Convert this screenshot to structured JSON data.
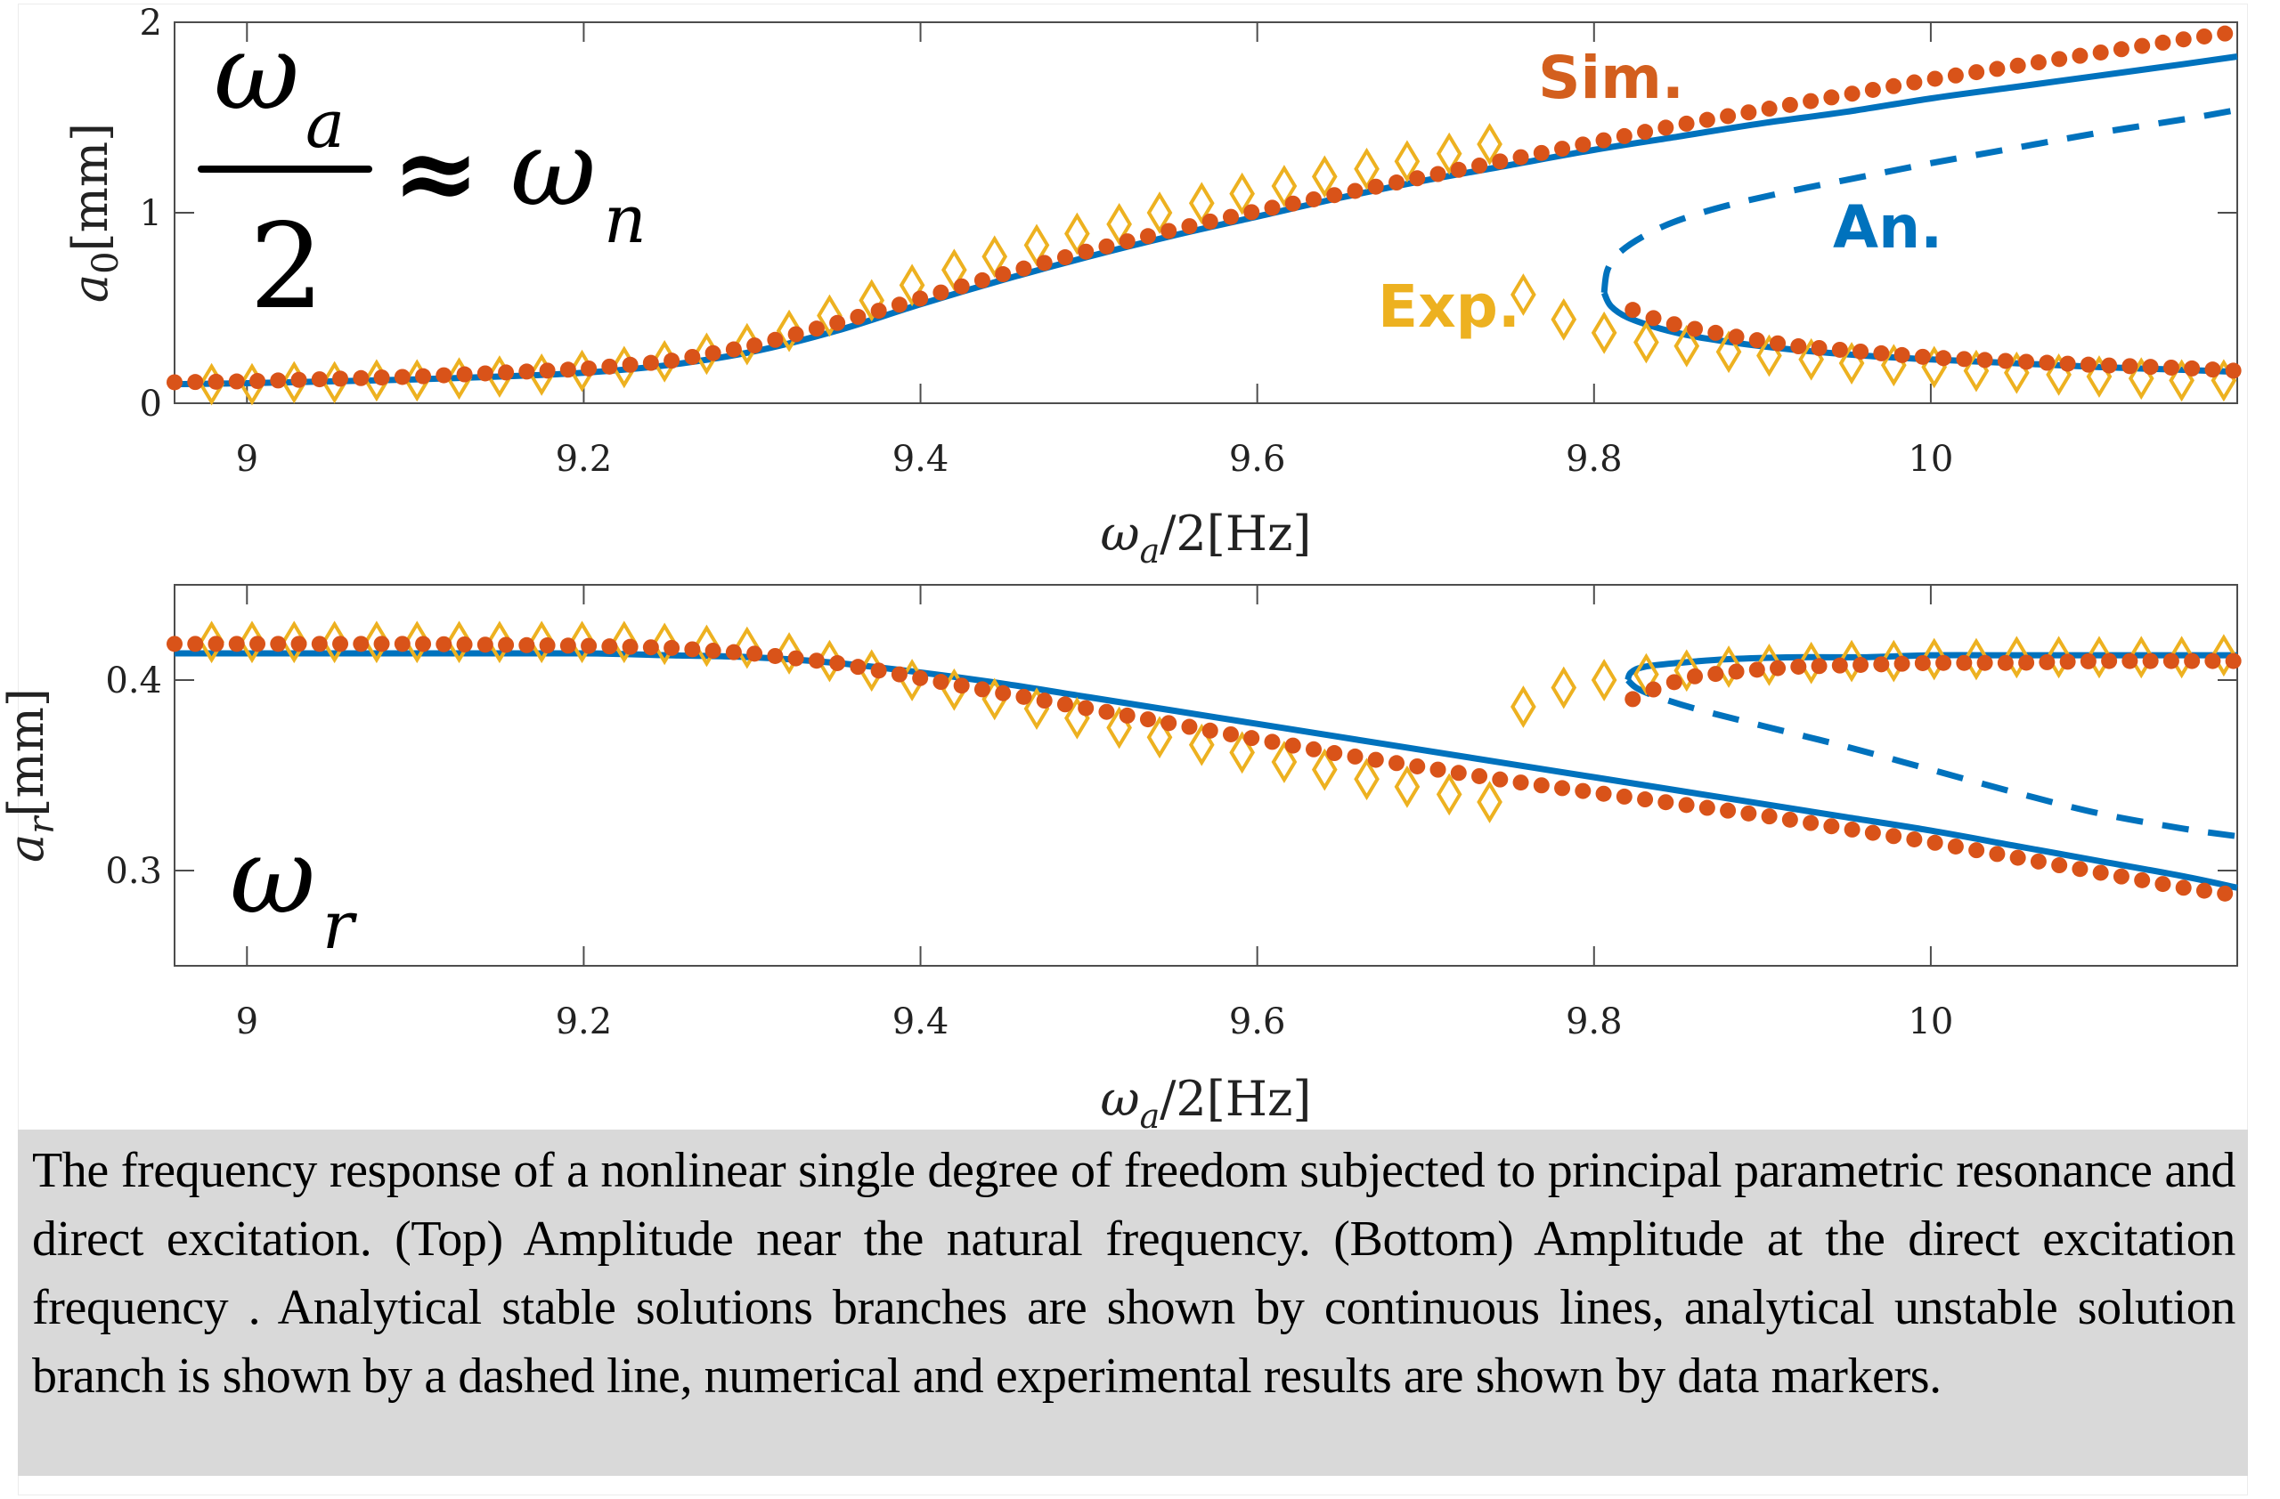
{
  "chart_data": [
    {
      "type": "line",
      "panel": "top",
      "title": "",
      "xlabel": "ω_a/2[Hz]",
      "ylabel": "a_0[mm]",
      "ylabel_color": "#0000ff",
      "xlim": [
        8.957,
        10.182
      ],
      "ylim": [
        0,
        2
      ],
      "xticks": [
        9,
        9.2,
        9.4,
        9.6,
        9.8,
        10
      ],
      "xtick_labels": [
        "9",
        "9.2",
        "9.4",
        "9.6",
        "9.8",
        "10"
      ],
      "yticks": [
        0,
        1,
        2
      ],
      "ytick_labels": [
        "0",
        "1",
        "2"
      ],
      "grid": false,
      "formula_annotation": {
        "numerator": "ω",
        "numerator_sub": "a",
        "denominator": "2",
        "relation": "≈",
        "rhs": "ω",
        "rhs_sub": "n"
      },
      "annotations": [
        {
          "text": "Sim.",
          "color": "#d35f1e",
          "x": 9.84,
          "y": 1.72
        },
        {
          "text": "An.",
          "color": "#0072bd",
          "x": 10.0,
          "y": 0.93
        },
        {
          "text": "Exp.",
          "color": "#edb120",
          "x": 9.71,
          "y": 0.52
        }
      ],
      "series": [
        {
          "name": "An. stable (upper branch)",
          "style": "solid",
          "color": "#0072bd",
          "x": [
            8.957,
            9.0,
            9.05,
            9.1,
            9.15,
            9.2,
            9.25,
            9.3,
            9.35,
            9.4,
            9.45,
            9.5,
            9.55,
            9.6,
            9.65,
            9.7,
            9.75,
            9.8,
            9.85,
            9.9,
            9.95,
            10.0,
            10.05,
            10.1,
            10.15,
            10.182
          ],
          "y": [
            0.1,
            0.105,
            0.115,
            0.125,
            0.14,
            0.16,
            0.2,
            0.27,
            0.38,
            0.52,
            0.65,
            0.77,
            0.88,
            0.98,
            1.08,
            1.17,
            1.25,
            1.33,
            1.4,
            1.47,
            1.53,
            1.6,
            1.66,
            1.72,
            1.78,
            1.82
          ]
        },
        {
          "name": "An. unstable branch",
          "style": "dashed",
          "color": "#0072bd",
          "x": [
            9.806,
            9.808,
            9.815,
            9.83,
            9.85,
            9.88,
            9.92,
            9.96,
            10.0,
            10.05,
            10.1,
            10.15,
            10.182
          ],
          "y": [
            0.58,
            0.7,
            0.79,
            0.88,
            0.96,
            1.04,
            1.12,
            1.19,
            1.26,
            1.34,
            1.42,
            1.49,
            1.54
          ]
        },
        {
          "name": "An. stable (lower branch)",
          "style": "solid",
          "color": "#0072bd",
          "x": [
            9.806,
            9.81,
            9.82,
            9.84,
            9.86,
            9.89,
            9.92,
            9.96,
            10.0,
            10.05,
            10.1,
            10.15,
            10.182
          ],
          "y": [
            0.58,
            0.51,
            0.45,
            0.39,
            0.35,
            0.31,
            0.28,
            0.25,
            0.23,
            0.21,
            0.19,
            0.175,
            0.165
          ]
        },
        {
          "name": "Sim.",
          "style": "dots",
          "color": "#d95319",
          "segments": [
            {
              "x_start": 8.957,
              "x_end": 10.182,
              "step": 0.0123,
              "x": [
                8.957,
                9.0,
                9.1,
                9.2,
                9.25,
                9.3,
                9.35,
                9.4,
                9.45,
                9.5,
                9.55,
                9.6,
                9.65,
                9.7,
                9.75,
                9.8,
                9.85,
                9.9,
                9.95,
                10.0,
                10.05,
                10.1,
                10.15,
                10.182
              ],
              "y": [
                0.11,
                0.115,
                0.14,
                0.18,
                0.22,
                0.3,
                0.42,
                0.55,
                0.68,
                0.8,
                0.91,
                1.01,
                1.1,
                1.19,
                1.28,
                1.37,
                1.46,
                1.54,
                1.62,
                1.7,
                1.77,
                1.84,
                1.91,
                1.95
              ]
            },
            {
              "x_start": 9.823,
              "x_end": 10.182,
              "step": 0.0123,
              "x": [
                9.823,
                9.84,
                9.86,
                9.89,
                9.92,
                9.96,
                10.0,
                10.05,
                10.1,
                10.15,
                10.182
              ],
              "y": [
                0.49,
                0.43,
                0.39,
                0.34,
                0.3,
                0.27,
                0.24,
                0.22,
                0.2,
                0.185,
                0.17
              ]
            }
          ]
        },
        {
          "name": "Exp.",
          "style": "diamonds",
          "color": "#edb120",
          "x": [
            8.979,
            9.003,
            9.028,
            9.052,
            9.077,
            9.101,
            9.126,
            9.15,
            9.175,
            9.199,
            9.224,
            9.248,
            9.273,
            9.297,
            9.322,
            9.346,
            9.371,
            9.395,
            9.42,
            9.444,
            9.469,
            9.493,
            9.518,
            9.542,
            9.567,
            9.591,
            9.616,
            9.64,
            9.665,
            9.689,
            9.714,
            9.738,
            9.758,
            9.782,
            9.806,
            9.831,
            9.855,
            9.88,
            9.904,
            9.929,
            9.953,
            9.978,
            10.002,
            10.027,
            10.051,
            10.076,
            10.1,
            10.125,
            10.149,
            10.174
          ],
          "y": [
            0.1,
            0.1,
            0.11,
            0.11,
            0.12,
            0.12,
            0.13,
            0.14,
            0.15,
            0.17,
            0.19,
            0.22,
            0.26,
            0.31,
            0.38,
            0.46,
            0.54,
            0.62,
            0.7,
            0.77,
            0.83,
            0.89,
            0.94,
            1.0,
            1.05,
            1.1,
            1.14,
            1.19,
            1.23,
            1.27,
            1.31,
            1.36,
            0.57,
            0.44,
            0.37,
            0.32,
            0.3,
            0.27,
            0.25,
            0.23,
            0.21,
            0.2,
            0.19,
            0.17,
            0.16,
            0.15,
            0.14,
            0.13,
            0.12,
            0.12
          ]
        }
      ]
    },
    {
      "type": "line",
      "panel": "bottom",
      "title": "",
      "xlabel": "ω_a/2[Hz]",
      "ylabel": "a_r[mm]",
      "ylabel_color": "#ff0000",
      "xlim": [
        8.957,
        10.182
      ],
      "ylim": [
        0.25,
        0.45
      ],
      "xticks": [
        9,
        9.2,
        9.4,
        9.6,
        9.8,
        10
      ],
      "xtick_labels": [
        "9",
        "9.2",
        "9.4",
        "9.6",
        "9.8",
        "10"
      ],
      "yticks": [
        0.3,
        0.4
      ],
      "ytick_labels": [
        "0.3",
        "0.4"
      ],
      "grid": false,
      "formula_annotation": {
        "symbol": "ω",
        "sub": "r"
      },
      "series": [
        {
          "name": "An. stable (main branch)",
          "style": "solid",
          "color": "#0072bd",
          "x": [
            8.957,
            9.0,
            9.1,
            9.2,
            9.25,
            9.3,
            9.35,
            9.4,
            9.45,
            9.5,
            9.55,
            9.6,
            9.65,
            9.7,
            9.75,
            9.8,
            9.85,
            9.9,
            9.95,
            10.0,
            10.05,
            10.1,
            10.15,
            10.182
          ],
          "y": [
            0.414,
            0.414,
            0.414,
            0.414,
            0.413,
            0.412,
            0.409,
            0.404,
            0.398,
            0.391,
            0.384,
            0.377,
            0.37,
            0.363,
            0.356,
            0.349,
            0.342,
            0.335,
            0.328,
            0.321,
            0.313,
            0.305,
            0.297,
            0.291
          ]
        },
        {
          "name": "An. stable (upper branch)",
          "style": "solid",
          "color": "#0072bd",
          "x": [
            9.82,
            9.822,
            9.83,
            9.85,
            9.88,
            9.92,
            9.96,
            10.0,
            10.05,
            10.1,
            10.15,
            10.182
          ],
          "y": [
            0.4,
            0.404,
            0.407,
            0.409,
            0.411,
            0.412,
            0.412,
            0.413,
            0.413,
            0.413,
            0.413,
            0.413
          ]
        },
        {
          "name": "An. unstable branch",
          "style": "dashed",
          "color": "#0072bd",
          "x": [
            9.82,
            9.825,
            9.835,
            9.86,
            9.9,
            9.95,
            10.0,
            10.05,
            10.1,
            10.15,
            10.182
          ],
          "y": [
            0.4,
            0.396,
            0.392,
            0.385,
            0.376,
            0.365,
            0.353,
            0.341,
            0.33,
            0.322,
            0.318
          ]
        },
        {
          "name": "Sim.",
          "style": "dots",
          "color": "#d95319",
          "segments": [
            {
              "x_start": 8.957,
              "x_end": 10.182,
              "step": 0.0123,
              "x": [
                8.957,
                9.0,
                9.1,
                9.2,
                9.25,
                9.3,
                9.35,
                9.4,
                9.45,
                9.5,
                9.55,
                9.6,
                9.65,
                9.7,
                9.75,
                9.8,
                9.85,
                9.9,
                9.95,
                10.0,
                10.05,
                10.1,
                10.15,
                10.182
              ],
              "y": [
                0.419,
                0.419,
                0.419,
                0.418,
                0.417,
                0.414,
                0.409,
                0.401,
                0.393,
                0.385,
                0.377,
                0.369,
                0.361,
                0.354,
                0.347,
                0.341,
                0.335,
                0.329,
                0.322,
                0.315,
                0.307,
                0.299,
                0.291,
                0.287
              ]
            },
            {
              "x_start": 9.823,
              "x_end": 10.182,
              "step": 0.0123,
              "x": [
                9.823,
                9.84,
                9.86,
                9.89,
                9.92,
                9.96,
                10.0,
                10.05,
                10.1,
                10.15,
                10.182
              ],
              "y": [
                0.39,
                0.397,
                0.402,
                0.405,
                0.407,
                0.408,
                0.409,
                0.409,
                0.41,
                0.41,
                0.41
              ]
            }
          ]
        },
        {
          "name": "Exp.",
          "style": "diamonds",
          "color": "#edb120",
          "x": [
            8.979,
            9.003,
            9.028,
            9.052,
            9.077,
            9.101,
            9.126,
            9.15,
            9.175,
            9.199,
            9.224,
            9.248,
            9.273,
            9.297,
            9.322,
            9.346,
            9.371,
            9.395,
            9.42,
            9.444,
            9.469,
            9.493,
            9.518,
            9.542,
            9.567,
            9.591,
            9.616,
            9.64,
            9.665,
            9.689,
            9.714,
            9.738,
            9.758,
            9.782,
            9.806,
            9.831,
            9.855,
            9.88,
            9.904,
            9.929,
            9.953,
            9.978,
            10.002,
            10.027,
            10.051,
            10.076,
            10.1,
            10.125,
            10.149,
            10.174
          ],
          "y": [
            0.42,
            0.42,
            0.42,
            0.42,
            0.42,
            0.42,
            0.42,
            0.42,
            0.42,
            0.42,
            0.42,
            0.419,
            0.418,
            0.417,
            0.414,
            0.41,
            0.405,
            0.4,
            0.395,
            0.39,
            0.385,
            0.38,
            0.375,
            0.37,
            0.366,
            0.362,
            0.357,
            0.353,
            0.348,
            0.344,
            0.34,
            0.336,
            0.386,
            0.396,
            0.4,
            0.403,
            0.405,
            0.407,
            0.408,
            0.409,
            0.41,
            0.41,
            0.411,
            0.411,
            0.412,
            0.412,
            0.412,
            0.412,
            0.412,
            0.413
          ]
        }
      ]
    }
  ],
  "caption": "The frequency response of a nonlinear single degree of freedom subjected to principal parametric resonance and direct excitation. (Top) Amplitude near the natural frequency. (Bottom) Amplitude at the direct excitation frequency . Analytical stable solutions branches are shown by continuous lines, analytical unstable solution branch is shown by a dashed line, numerical and experimental results are shown by data markers."
}
